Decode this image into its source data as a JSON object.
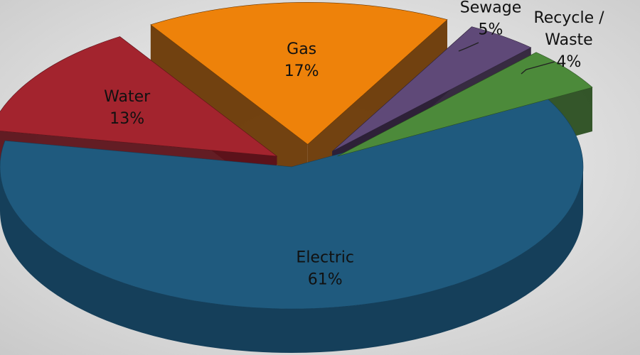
{
  "chart_data": {
    "type": "pie",
    "style": "3d-exploded",
    "title": "",
    "slices": [
      {
        "label": "Electric",
        "pct_label": "61%",
        "value": 61,
        "color": "#1f5a7e",
        "side_color": "#153f5a",
        "text_color": "#111111"
      },
      {
        "label": "Water",
        "pct_label": "13%",
        "value": 13,
        "color": "#a3242e",
        "side_color": "#5c1219",
        "text_color": "#111111"
      },
      {
        "label": "Gas",
        "pct_label": "17%",
        "value": 17,
        "color": "#ee820a",
        "side_color": "#6a3804",
        "text_color": "#111111"
      },
      {
        "label": "Recycle / Waste",
        "label_lines": [
          "Recycle /",
          "Waste"
        ],
        "pct_label": "4%",
        "value": 4,
        "color": "#5f4978",
        "side_color": "#2d2138",
        "text_color": "#111111"
      },
      {
        "label": "Sewage",
        "pct_label": "5%",
        "value": 5,
        "color": "#4c8a3a",
        "side_color": "#2a4e20",
        "text_color": "#111111"
      }
    ],
    "background": {
      "inner": "#f7f7f7",
      "outer": "#c9c9c9"
    }
  }
}
